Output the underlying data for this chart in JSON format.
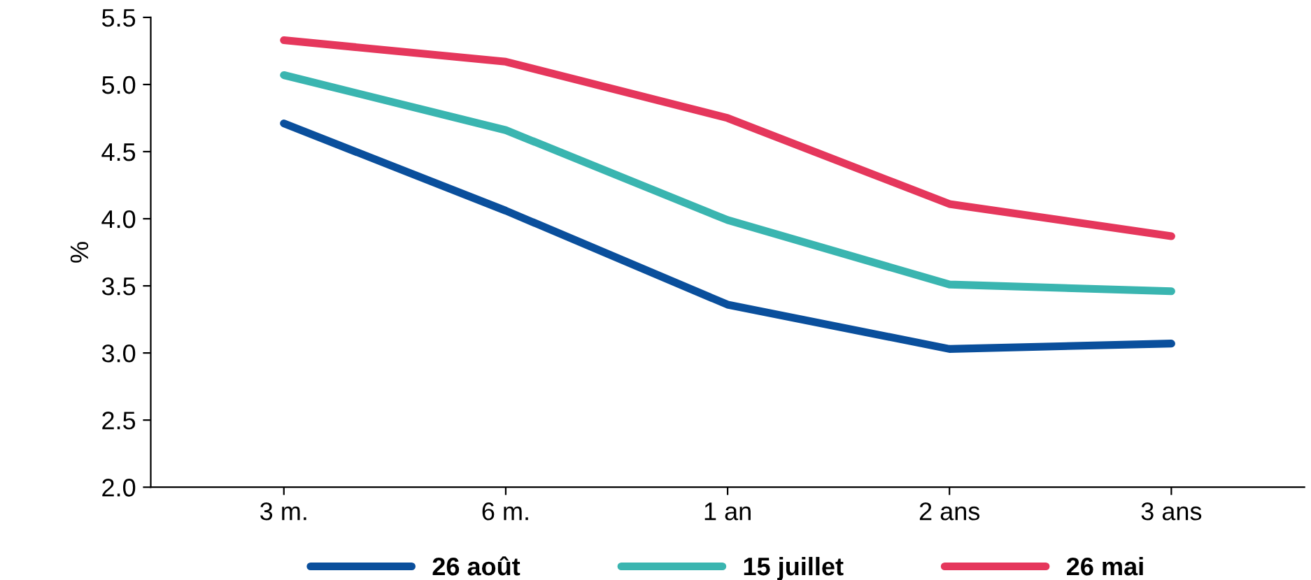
{
  "chart_data": {
    "type": "line",
    "ylabel": "%",
    "categories": [
      "3 m.",
      "6 m.",
      "1 an",
      "2 ans",
      "3 ans"
    ],
    "series": [
      {
        "name": "26 août",
        "color": "#0a4f9c",
        "values": [
          4.71,
          4.06,
          3.36,
          3.03,
          3.07
        ]
      },
      {
        "name": "15 juillet",
        "color": "#3ab5b0",
        "values": [
          5.07,
          4.66,
          3.99,
          3.51,
          3.46
        ]
      },
      {
        "name": "26 mai",
        "color": "#e5375c",
        "values": [
          5.33,
          5.17,
          4.75,
          4.11,
          3.87
        ]
      }
    ],
    "ylim": [
      2.0,
      5.5
    ],
    "yticks": [
      {
        "value": 2.0,
        "label": "2.0"
      },
      {
        "value": 2.5,
        "label": "2.5"
      },
      {
        "value": 3.0,
        "label": "3.0"
      },
      {
        "value": 3.5,
        "label": "3.5"
      },
      {
        "value": 4.0,
        "label": "4.0"
      },
      {
        "value": 4.5,
        "label": "4.5"
      },
      {
        "value": 5.0,
        "label": "5.0"
      },
      {
        "value": 5.5,
        "label": "5.5"
      }
    ],
    "grid": false,
    "legend": "bottom",
    "marker": "none",
    "line_style": "solid"
  }
}
